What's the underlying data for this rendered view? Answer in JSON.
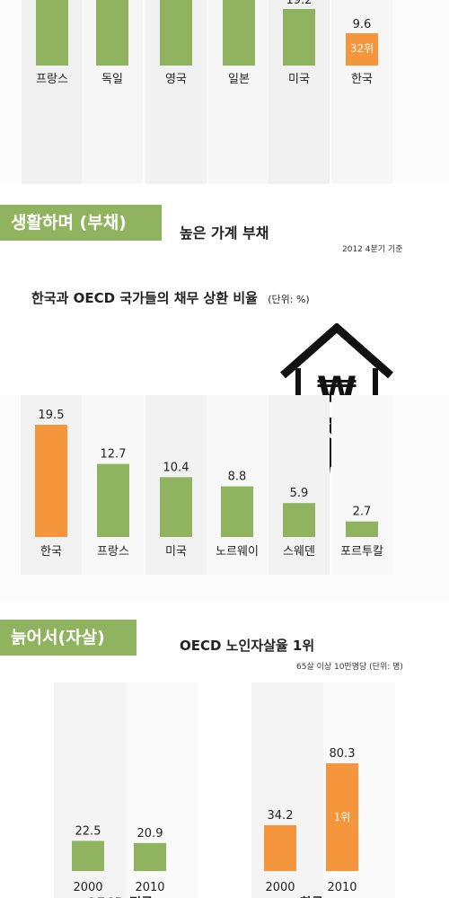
{
  "section1": {
    "chart_data": {
      "type": "bar",
      "categories": [
        "프랑스",
        "독일",
        "영국",
        "일본",
        "미국",
        "한국"
      ],
      "values": [
        null,
        null,
        null,
        null,
        19.2,
        9.6
      ],
      "value_labels": [
        "",
        "",
        "",
        "",
        "19.2",
        "9.6"
      ],
      "highlight_index": 5,
      "highlight_label": "32위",
      "colors": {
        "bar": "#8fb35e",
        "highlight": "#f5963d"
      }
    }
  },
  "section2": {
    "tag": "생활하며 (부채)",
    "heading": "높은 가계 부채",
    "note": "2012 4분기 기준",
    "chart_data": {
      "type": "bar",
      "title": "한국과 OECD 국가들의 채무 상환 비율",
      "unit": "(단위: %)",
      "categories": [
        "한국",
        "프랑스",
        "미국",
        "노르웨이",
        "스웨덴",
        "포르투칼"
      ],
      "values": [
        19.5,
        12.7,
        10.4,
        8.8,
        5.9,
        2.7
      ],
      "highlight_index": 0,
      "colors": {
        "bar": "#8fb35e",
        "highlight": "#f5963d"
      }
    },
    "icon": "house-debt-icon",
    "icon_symbol": "₩"
  },
  "section3": {
    "tag": "늙어서(자살)",
    "heading": "OECD 노인자살율 1위",
    "note": "65살 이상 10만명당 (단위: 명)",
    "chart_data": {
      "type": "bar",
      "groups": [
        {
          "name": "OECD 평균",
          "categories": [
            "2000",
            "2010"
          ],
          "values": [
            22.5,
            20.9
          ],
          "color": "#8fb35e"
        },
        {
          "name": "한국",
          "categories": [
            "2000",
            "2010"
          ],
          "values": [
            34.2,
            80.3
          ],
          "color": "#f5963d"
        }
      ],
      "badge": "1위"
    }
  }
}
